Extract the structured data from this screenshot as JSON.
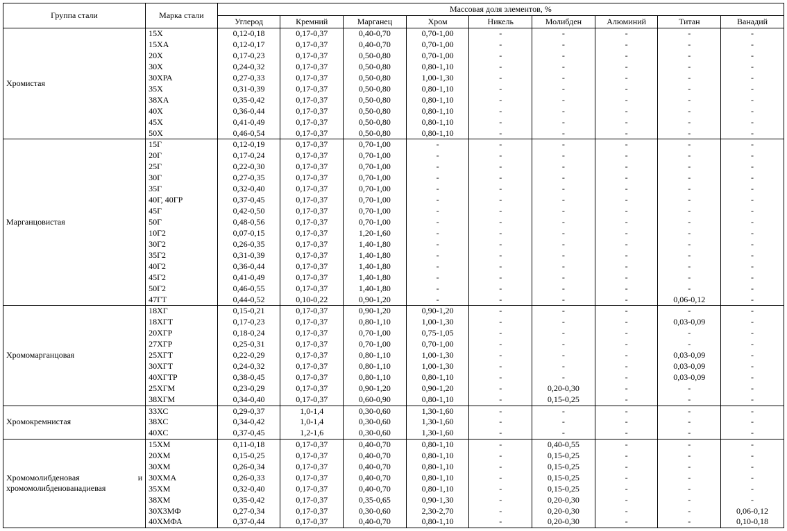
{
  "headers": {
    "group": "Группа стали",
    "mark": "Марка стали",
    "mass_frac": "Массовая доля элементов, %",
    "elements": [
      "Углерод",
      "Кремний",
      "Марганец",
      "Хром",
      "Никель",
      "Молибден",
      "Алюминий",
      "Титан",
      "Ванадий"
    ]
  },
  "groups": [
    {
      "name": "Хромистая",
      "rows": [
        {
          "mark": "15Х",
          "c": [
            "0,12-0,18",
            "0,17-0,37",
            "0,40-0,70",
            "0,70-1,00",
            "-",
            "-",
            "-",
            "-",
            "-"
          ]
        },
        {
          "mark": "15ХА",
          "c": [
            "0,12-0,17",
            "0,17-0,37",
            "0,40-0,70",
            "0,70-1,00",
            "-",
            "-",
            "-",
            "-",
            "-"
          ]
        },
        {
          "mark": "20Х",
          "c": [
            "0,17-0,23",
            "0,17-0,37",
            "0,50-0,80",
            "0,70-1,00",
            "-",
            "-",
            "-",
            "-",
            "-"
          ]
        },
        {
          "mark": "30Х",
          "c": [
            "0,24-0,32",
            "0,17-0,37",
            "0,50-0,80",
            "0,80-1,10",
            "-",
            "-",
            "-",
            "-",
            "-"
          ]
        },
        {
          "mark": "30ХРА",
          "c": [
            "0,27-0,33",
            "0,17-0,37",
            "0,50-0,80",
            "1,00-1,30",
            "-",
            "-",
            "-",
            "-",
            "-"
          ]
        },
        {
          "mark": "35Х",
          "c": [
            "0,31-0,39",
            "0,17-0,37",
            "0,50-0,80",
            "0,80-1,10",
            "-",
            "-",
            "-",
            "-",
            "-"
          ]
        },
        {
          "mark": "38ХА",
          "c": [
            "0,35-0,42",
            "0,17-0,37",
            "0,50-0,80",
            "0,80-1,10",
            "-",
            "-",
            "-",
            "-",
            "-"
          ]
        },
        {
          "mark": "40Х",
          "c": [
            "0,36-0,44",
            "0,17-0,37",
            "0,50-0,80",
            "0,80-1,10",
            "-",
            "-",
            "-",
            "-",
            "-"
          ]
        },
        {
          "mark": "45Х",
          "c": [
            "0,41-0,49",
            "0,17-0,37",
            "0,50-0,80",
            "0,80-1,10",
            "-",
            "-",
            "-",
            "-",
            "-"
          ]
        },
        {
          "mark": "50Х",
          "c": [
            "0,46-0,54",
            "0,17-0,37",
            "0,50-0,80",
            "0,80-1,10",
            "-",
            "-",
            "-",
            "-",
            "-"
          ]
        }
      ]
    },
    {
      "name": "Марганцовистая",
      "rows": [
        {
          "mark": "15Г",
          "c": [
            "0,12-0,19",
            "0,17-0,37",
            "0,70-1,00",
            "-",
            "-",
            "-",
            "-",
            "-",
            "-"
          ]
        },
        {
          "mark": "20Г",
          "c": [
            "0,17-0,24",
            "0,17-0,37",
            "0,70-1,00",
            "-",
            "-",
            "-",
            "-",
            "-",
            "-"
          ]
        },
        {
          "mark": "25Г",
          "c": [
            "0,22-0,30",
            "0,17-0,37",
            "0,70-1,00",
            "-",
            "-",
            "-",
            "-",
            "-",
            "-"
          ]
        },
        {
          "mark": "30Г",
          "c": [
            "0,27-0,35",
            "0,17-0,37",
            "0,70-1,00",
            "-",
            "-",
            "-",
            "-",
            "-",
            "-"
          ]
        },
        {
          "mark": "35Г",
          "c": [
            "0,32-0,40",
            "0,17-0,37",
            "0,70-1,00",
            "-",
            "-",
            "-",
            "-",
            "-",
            "-"
          ]
        },
        {
          "mark": "40Г, 40ГР",
          "c": [
            "0,37-0,45",
            "0,17-0,37",
            "0,70-1,00",
            "-",
            "-",
            "-",
            "-",
            "-",
            "-"
          ]
        },
        {
          "mark": "45Г",
          "c": [
            "0,42-0,50",
            "0,17-0,37",
            "0,70-1,00",
            "-",
            "-",
            "-",
            "-",
            "-",
            "-"
          ]
        },
        {
          "mark": "50Г",
          "c": [
            "0,48-0,56",
            "0,17-0,37",
            "0,70-1,00",
            "-",
            "-",
            "-",
            "-",
            "-",
            "-"
          ]
        },
        {
          "mark": "10Г2",
          "c": [
            "0,07-0,15",
            "0,17-0,37",
            "1,20-1,60",
            "-",
            "-",
            "-",
            "-",
            "-",
            "-"
          ]
        },
        {
          "mark": "30Г2",
          "c": [
            "0,26-0,35",
            "0,17-0,37",
            "1,40-1,80",
            "-",
            "-",
            "-",
            "-",
            "-",
            "-"
          ]
        },
        {
          "mark": "35Г2",
          "c": [
            "0,31-0,39",
            "0,17-0,37",
            "1,40-1,80",
            "-",
            "-",
            "-",
            "-",
            "-",
            "-"
          ]
        },
        {
          "mark": "40Г2",
          "c": [
            "0,36-0,44",
            "0,17-0,37",
            "1,40-1,80",
            "-",
            "-",
            "-",
            "-",
            "-",
            "-"
          ]
        },
        {
          "mark": "45Г2",
          "c": [
            "0,41-0,49",
            "0,17-0,37",
            "1,40-1,80",
            "-",
            "-",
            "-",
            "-",
            "-",
            "-"
          ]
        },
        {
          "mark": "50Г2",
          "c": [
            "0,46-0,55",
            "0,17-0,37",
            "1,40-1,80",
            "-",
            "-",
            "-",
            "-",
            "-",
            "-"
          ]
        },
        {
          "mark": "47ГТ",
          "c": [
            "0,44-0,52",
            "0,10-0,22",
            "0,90-1,20",
            "-",
            "-",
            "-",
            "-",
            "0,06-0,12",
            "-"
          ]
        }
      ]
    },
    {
      "name": "Хромомарганцовая",
      "rows": [
        {
          "mark": "18ХГ",
          "c": [
            "0,15-0,21",
            "0,17-0,37",
            "0,90-1,20",
            "0,90-1,20",
            "-",
            "-",
            "-",
            "-",
            "-"
          ]
        },
        {
          "mark": "18ХГТ",
          "c": [
            "0,17-0,23",
            "0,17-0,37",
            "0,80-1,10",
            "1,00-1,30",
            "-",
            "-",
            "-",
            "0,03-0,09",
            "-"
          ]
        },
        {
          "mark": "20ХГР",
          "c": [
            "0,18-0,24",
            "0,17-0,37",
            "0,70-1,00",
            "0,75-1,05",
            "-",
            "-",
            "-",
            "-",
            "-"
          ]
        },
        {
          "mark": "27ХГР",
          "c": [
            "0,25-0,31",
            "0,17-0,37",
            "0,70-1,00",
            "0,70-1,00",
            "-",
            "-",
            "-",
            "-",
            "-"
          ]
        },
        {
          "mark": "25ХГТ",
          "c": [
            "0,22-0,29",
            "0,17-0,37",
            "0,80-1,10",
            "1,00-1,30",
            "-",
            "-",
            "-",
            "0,03-0,09",
            "-"
          ]
        },
        {
          "mark": "30ХГТ",
          "c": [
            "0,24-0,32",
            "0,17-0,37",
            "0,80-1,10",
            "1,00-1,30",
            "-",
            "-",
            "-",
            "0,03-0,09",
            "-"
          ]
        },
        {
          "mark": "40ХГТР",
          "c": [
            "0,38-0,45",
            "0,17-0,37",
            "0,80-1,10",
            "0,80-1,10",
            "-",
            "-",
            "-",
            "0,03-0,09",
            "-"
          ]
        },
        {
          "mark": "25ХГМ",
          "c": [
            "0,23-0,29",
            "0,17-0,37",
            "0,90-1,20",
            "0,90-1,20",
            "-",
            "0,20-0,30",
            "-",
            "-",
            "-"
          ]
        },
        {
          "mark": "38ХГМ",
          "c": [
            "0,34-0,40",
            "0,17-0,37",
            "0,60-0,90",
            "0,80-1,10",
            "-",
            "0,15-0,25",
            "-",
            "-",
            "-"
          ]
        }
      ]
    },
    {
      "name": "Хромокремнистая",
      "rows": [
        {
          "mark": "33ХС",
          "c": [
            "0,29-0,37",
            "1,0-1,4",
            "0,30-0,60",
            "1,30-1,60",
            "-",
            "-",
            "-",
            "-",
            "-"
          ]
        },
        {
          "mark": "38ХС",
          "c": [
            "0,34-0,42",
            "1,0-1,4",
            "0,30-0,60",
            "1,30-1,60",
            "-",
            "-",
            "-",
            "-",
            "-"
          ]
        },
        {
          "mark": "40ХС",
          "c": [
            "0,37-0,45",
            "1,2-1,6",
            "0,30-0,60",
            "1,30-1,60",
            "-",
            "-",
            "-",
            "-",
            "-"
          ]
        }
      ]
    },
    {
      "name": "Хромомолибденовая",
      "name_suffix": "и",
      "name2": "хромомолибденованадиевая",
      "rows": [
        {
          "mark": "15ХМ",
          "c": [
            "0,11-0,18",
            "0,17-0,37",
            "0,40-0,70",
            "0,80-1,10",
            "-",
            "0,40-0,55",
            "-",
            "-",
            "-"
          ]
        },
        {
          "mark": "20ХМ",
          "c": [
            "0,15-0,25",
            "0,17-0,37",
            "0,40-0,70",
            "0,80-1,10",
            "-",
            "0,15-0,25",
            "-",
            "-",
            "-"
          ]
        },
        {
          "mark": "30ХМ",
          "c": [
            "0,26-0,34",
            "0,17-0,37",
            "0,40-0,70",
            "0,80-1,10",
            "-",
            "0,15-0,25",
            "-",
            "-",
            "-"
          ]
        },
        {
          "mark": "30ХМА",
          "c": [
            "0,26-0,33",
            "0,17-0,37",
            "0,40-0,70",
            "0,80-1,10",
            "-",
            "0,15-0,25",
            "-",
            "-",
            "-"
          ]
        },
        {
          "mark": "35ХМ",
          "c": [
            "0,32-0,40",
            "0,17-0,37",
            "0,40-0,70",
            "0,80-1,10",
            "-",
            "0,15-0,25",
            "-",
            "-",
            "-"
          ]
        },
        {
          "mark": "38ХМ",
          "c": [
            "0,35-0,42",
            "0,17-0,37",
            "0,35-0,65",
            "0,90-1,30",
            "-",
            "0,20-0,30",
            "-",
            "-",
            "-"
          ]
        },
        {
          "mark": "30Х3МФ",
          "c": [
            "0,27-0,34",
            "0,17-0,37",
            "0,30-0,60",
            "2,30-2,70",
            "-",
            "0,20-0,30",
            "-",
            "-",
            "0,06-0,12"
          ]
        },
        {
          "mark": "40ХМФА",
          "c": [
            "0,37-0,44",
            "0,17-0,37",
            "0,40-0,70",
            "0,80-1,10",
            "-",
            "0,20-0,30",
            "-",
            "-",
            "0,10-0,18"
          ]
        }
      ]
    }
  ]
}
